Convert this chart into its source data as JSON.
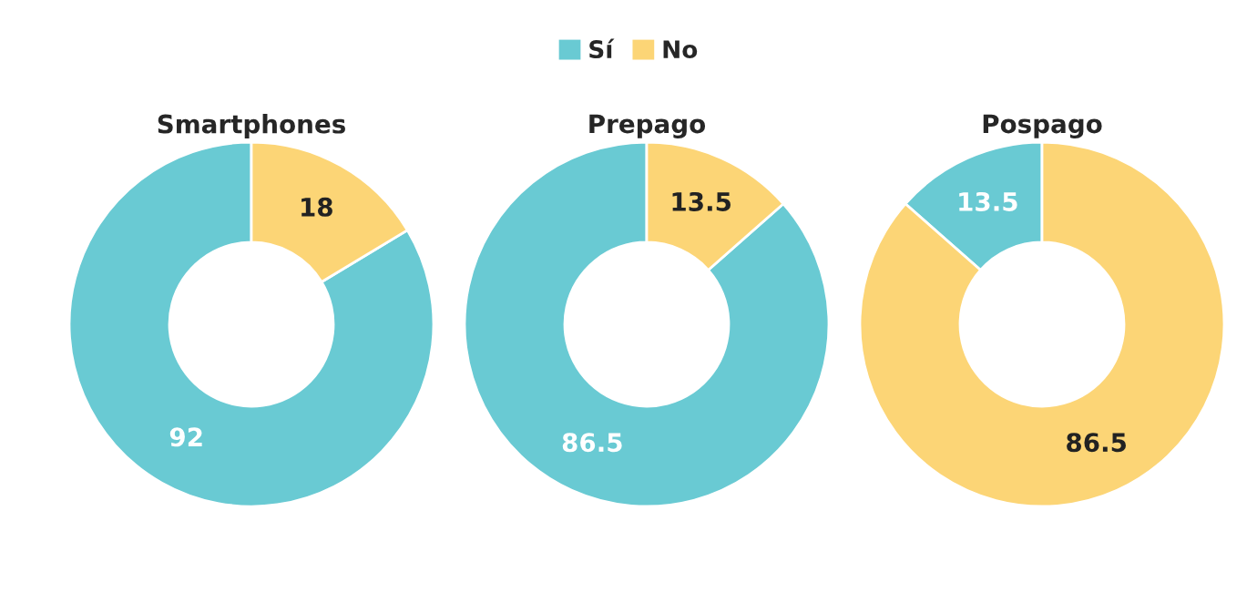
{
  "chart_data": {
    "type": "donut",
    "categories": [
      "Sí",
      "No"
    ],
    "colors": [
      "#69cad3",
      "#fcd576"
    ],
    "data_labels": true,
    "legend": "top",
    "series": [
      {
        "name": "Smartphones",
        "values": [
          92,
          18
        ]
      },
      {
        "name": "Prepago",
        "values": [
          86.5,
          13.5
        ]
      },
      {
        "name": "Pospago",
        "values": [
          13.5,
          86.5
        ]
      }
    ]
  }
}
